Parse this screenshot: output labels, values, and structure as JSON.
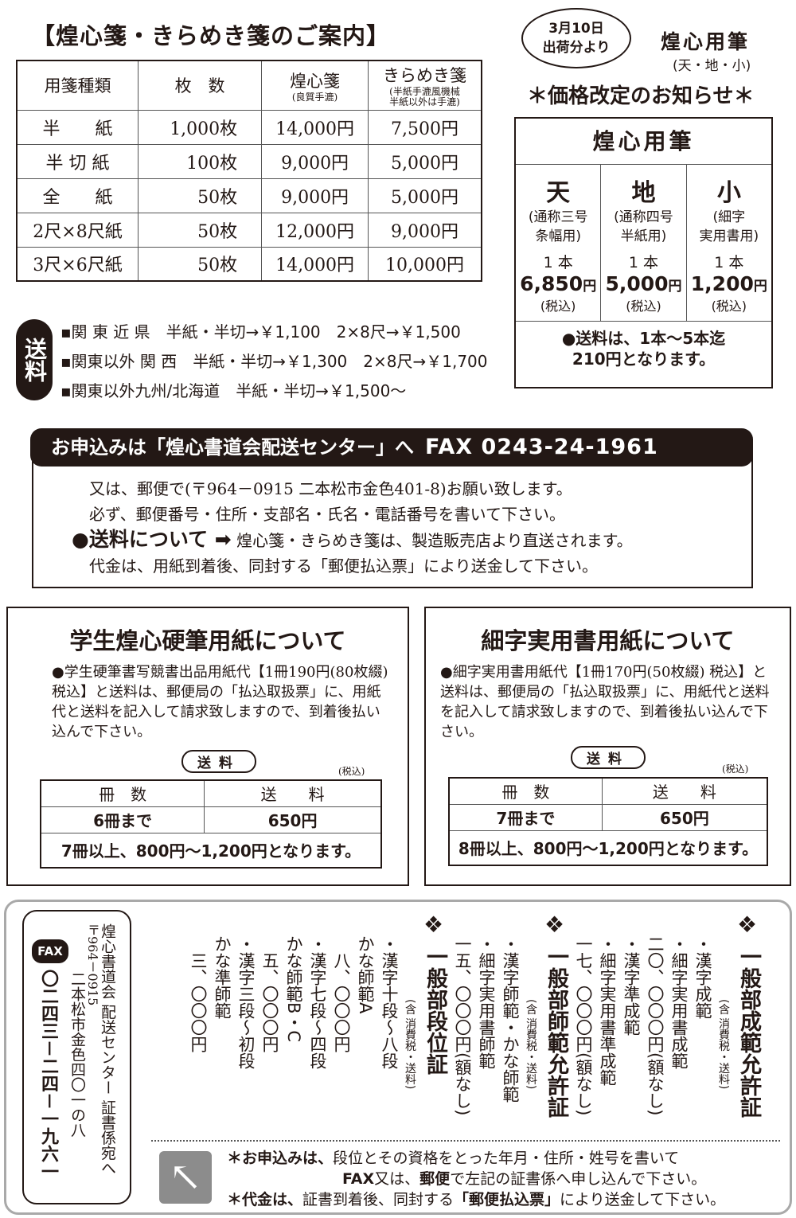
{
  "title": "【煌心箋・きらめき箋のご案内】",
  "paper_table": {
    "headers": [
      "用箋種類",
      "枚　数",
      "煌心箋",
      "きらめき箋"
    ],
    "header_notes": [
      "(良質手漉)",
      "(半紙手漉風機械",
      "半紙以外は手漉)"
    ],
    "rows": [
      [
        "半　　紙",
        "1,000枚",
        "14,000円",
        "7,500円"
      ],
      [
        "半 切 紙",
        "100枚",
        "9,000円",
        "5,000円"
      ],
      [
        "全　　紙",
        "50枚",
        "9,000円",
        "5,000円"
      ],
      [
        "2尺×8尺紙",
        "50枚",
        "12,000円",
        "9,000円"
      ],
      [
        "3尺×6尺紙",
        "50枚",
        "14,000円",
        "10,000円"
      ]
    ]
  },
  "shipping": {
    "badge": "送料",
    "rows": [
      "▪関 東 近 県　半紙・半切→￥1,100　2×8尺→￥1,500",
      "▪関東以外 関 西　半紙・半切→￥1,300　2×8尺→￥1,700",
      "▪関東以外九州/北海道　半紙・半切→￥1,500～"
    ]
  },
  "bubble": [
    "3月10日",
    "出荷分より"
  ],
  "pen": {
    "title": "煌心用筆",
    "subtitle": "(天・地・小)",
    "notice": "＊価格改定のお知らせ＊",
    "box_title": "煌心用筆",
    "items": [
      {
        "name": "天",
        "desc": "(通称三号\n条幅用)",
        "qty": "1 本",
        "price": "6,850",
        "unit": "円",
        "tax": "(税込)"
      },
      {
        "name": "地",
        "desc": "(通称四号\n半紙用)",
        "qty": "1 本",
        "price": "5,000",
        "unit": "円",
        "tax": "(税込)"
      },
      {
        "name": "小",
        "desc": "(細字\n実用書用)",
        "qty": "1 本",
        "price": "1,200",
        "unit": "円",
        "tax": "(税込)"
      }
    ],
    "footer1": "●送料は、1本～5本迄",
    "footer2": "210円となります。"
  },
  "order": {
    "banner": "お申込みは「煌心書道会配送センター」へ",
    "fax": "FAX 0243-24-1961",
    "line1": "又は、郵便で(〒964－0915 二本松市金色401-8)お願い致します。",
    "line2": "必ず、郵便番号・住所・支部名・氏名・電話番号を書いて下さい。",
    "line3_bold": "●送料について ➡",
    "line3": "煌心箋・きらめき箋は、製造販売店より直送されます。",
    "line4": "代金は、用紙到着後、同封する「郵便払込票」により送金して下さい。"
  },
  "student": {
    "title": "学生煌心硬筆用紙について",
    "text": "●学生硬筆書写競書出品用紙代【1冊190円(80枚綴) 税込】と送料は、郵便局の「払込取扱票」に、用紙代と送料を記入して請求致しますので、到着後払い込んで下さい。",
    "tag": "送料",
    "tax": "(税込)",
    "headers": [
      "冊　数",
      "送　　料"
    ],
    "row": [
      "6冊まで",
      "650円"
    ],
    "footer": "7冊以上、800円～1,200円となります。"
  },
  "fine": {
    "title": "細字実用書用紙について",
    "text": "●細字実用書用紙代【1冊170円(50枚綴) 税込】と送料は、郵便局の「払込取扱票」に、用紙代と送料を記入して請求致しますので、到着後払い込んで下さい。",
    "tag": "送料",
    "tax": "(税込)",
    "headers": [
      "冊　数",
      "送　　料"
    ],
    "row": [
      "7冊まで",
      "650円"
    ],
    "footer": "8冊以上、800円～1,200円となります。"
  },
  "certs": {
    "fax_logo": "FAX",
    "fax_number": "〇二四三－二四－一九六一",
    "address1": "煌心書道会 配送センター 証書係宛へ",
    "address2": "〒964－0915",
    "address3": "二本松市金色四〇一の八",
    "groups": [
      {
        "title": "一般部成範允許証",
        "sub": "(含 消費税・送料)",
        "lines": [
          "・漢字成範",
          "・細字実用書成範",
          "二〇、〇〇〇円(額なし)"
        ]
      },
      {
        "title": "一般部師範允許証",
        "sub": "(含 消費税・送料)",
        "lines": [
          "・漢字準成範",
          "・細字実用書準成範",
          "一七、〇〇〇円(額なし)",
          "・漢字師範・かな師範",
          "・細字実用書師範",
          "一五、〇〇〇円(額なし)"
        ]
      },
      {
        "title": "一般部段位証",
        "sub": "(含 消費税・送料)",
        "lines": [
          "・漢字十段～八段",
          "かな師範A",
          "　八、〇〇〇円",
          "・漢字七段～四段",
          "かな師範B・C",
          "　五、〇〇〇円",
          "・漢字三段～初段",
          "かな準師範",
          "　三、〇〇〇円"
        ]
      }
    ],
    "note1_bold": "＊お申込みは、",
    "note1": "段位とその資格をとった年月・住所・姓号を書いて",
    "note2_bold": "FAX",
    "note2a": "又は、",
    "note2_bold2": "郵便",
    "note2": "で左記の証書係へ申し込んで下さい。",
    "note3_bold": "＊代金は、",
    "note3": "証書到着後、同封する",
    "note3_bold2": "「郵便払込票」",
    "note3b": "により送金して下さい。"
  }
}
